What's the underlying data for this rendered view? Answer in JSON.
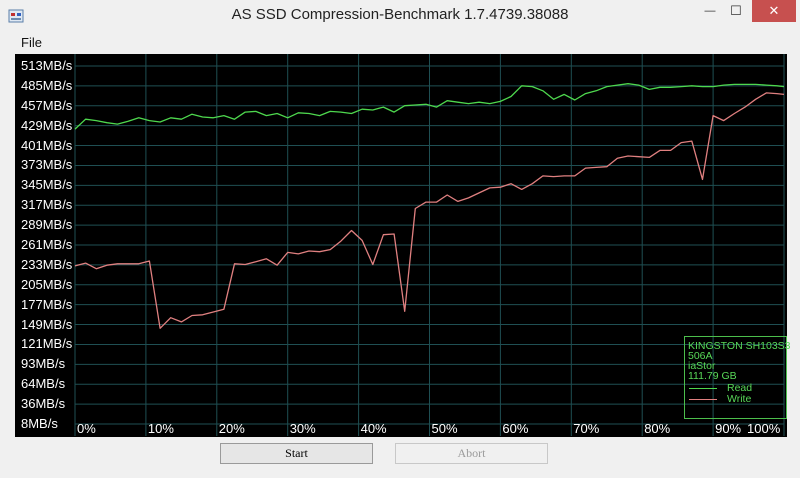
{
  "window": {
    "title": "AS SSD Compression-Benchmark 1.7.4739.38088",
    "minimize_glyph": "—",
    "maximize_glyph": "☐",
    "close_glyph": "✕"
  },
  "menu": {
    "file": "File"
  },
  "chart_data": {
    "type": "line",
    "title": "",
    "xlabel": "",
    "ylabel": "",
    "y_unit": "MB/s",
    "ylim": [
      8,
      513
    ],
    "xlim": [
      0,
      100
    ],
    "y_tick_labels": [
      "513MB/s",
      "485MB/s",
      "457MB/s",
      "429MB/s",
      "401MB/s",
      "373MB/s",
      "345MB/s",
      "317MB/s",
      "289MB/s",
      "261MB/s",
      "233MB/s",
      "205MB/s",
      "177MB/s",
      "149MB/s",
      "121MB/s",
      "93MB/s",
      "64MB/s",
      "36MB/s",
      "8MB/s"
    ],
    "x_ticks": [
      {
        "value": 0,
        "label": "0%"
      },
      {
        "value": 10,
        "label": "10%"
      },
      {
        "value": 20,
        "label": "20%"
      },
      {
        "value": 30,
        "label": "30%"
      },
      {
        "value": 40,
        "label": "40%"
      },
      {
        "value": 50,
        "label": "50%"
      },
      {
        "value": 60,
        "label": "60%"
      },
      {
        "value": 70,
        "label": "70%"
      },
      {
        "value": 80,
        "label": "80%"
      },
      {
        "value": 90,
        "label": "90%"
      },
      {
        "value": 100,
        "label": "100%"
      }
    ],
    "grid": true,
    "background": "#000000",
    "grid_color": "#1f4f53",
    "series": [
      {
        "name": "Read",
        "color": "#4ed84e",
        "points": [
          [
            0,
            424
          ],
          [
            1.5,
            438
          ],
          [
            3,
            436
          ],
          [
            4.5,
            433
          ],
          [
            6,
            431
          ],
          [
            7.5,
            435
          ],
          [
            9,
            440
          ],
          [
            10.5,
            436
          ],
          [
            12,
            434
          ],
          [
            13.5,
            440
          ],
          [
            15,
            438
          ],
          [
            16.5,
            445
          ],
          [
            18,
            441
          ],
          [
            19.5,
            440
          ],
          [
            21,
            443
          ],
          [
            22.5,
            438
          ],
          [
            24,
            448
          ],
          [
            25.5,
            449
          ],
          [
            27,
            443
          ],
          [
            28.5,
            446
          ],
          [
            30,
            440
          ],
          [
            31.5,
            447
          ],
          [
            33,
            446
          ],
          [
            34.5,
            443
          ],
          [
            36,
            449
          ],
          [
            37.5,
            448
          ],
          [
            39,
            446
          ],
          [
            40.5,
            452
          ],
          [
            42,
            451
          ],
          [
            43.5,
            455
          ],
          [
            45,
            448
          ],
          [
            46.5,
            457
          ],
          [
            48,
            458
          ],
          [
            49.5,
            459
          ],
          [
            51,
            455
          ],
          [
            52.5,
            464
          ],
          [
            54,
            462
          ],
          [
            55.5,
            460
          ],
          [
            57,
            462
          ],
          [
            58.5,
            460
          ],
          [
            60,
            463
          ],
          [
            61.5,
            470
          ],
          [
            63,
            485
          ],
          [
            64.5,
            484
          ],
          [
            66,
            478
          ],
          [
            67.5,
            466
          ],
          [
            69,
            473
          ],
          [
            70.5,
            465
          ],
          [
            72,
            474
          ],
          [
            73.5,
            478
          ],
          [
            75,
            484
          ],
          [
            76.5,
            486
          ],
          [
            78,
            488
          ],
          [
            79.5,
            486
          ],
          [
            81,
            480
          ],
          [
            82.5,
            483
          ],
          [
            84,
            483
          ],
          [
            85.5,
            484
          ],
          [
            87,
            485
          ],
          [
            88.5,
            484
          ],
          [
            90,
            484
          ],
          [
            91.5,
            486
          ],
          [
            93,
            487
          ],
          [
            94.5,
            487
          ],
          [
            96,
            487
          ],
          [
            97.5,
            486
          ],
          [
            99,
            485
          ],
          [
            100,
            484
          ]
        ]
      },
      {
        "name": "Write",
        "color": "#e08080",
        "points": [
          [
            0,
            231
          ],
          [
            1.5,
            235
          ],
          [
            3,
            227
          ],
          [
            4.5,
            232
          ],
          [
            6,
            234
          ],
          [
            7.5,
            234
          ],
          [
            9,
            234
          ],
          [
            10.5,
            238
          ],
          [
            12,
            143
          ],
          [
            13.5,
            158
          ],
          [
            15,
            152
          ],
          [
            16.5,
            161
          ],
          [
            18,
            162
          ],
          [
            19.5,
            166
          ],
          [
            21,
            170
          ],
          [
            22.5,
            234
          ],
          [
            24,
            233
          ],
          [
            25.5,
            237
          ],
          [
            27,
            241
          ],
          [
            28.5,
            232
          ],
          [
            30,
            250
          ],
          [
            31.5,
            248
          ],
          [
            33,
            252
          ],
          [
            34.5,
            251
          ],
          [
            36,
            254
          ],
          [
            37.5,
            266
          ],
          [
            39,
            281
          ],
          [
            40.5,
            267
          ],
          [
            42,
            233
          ],
          [
            43.5,
            275
          ],
          [
            45,
            276
          ],
          [
            46.5,
            167
          ],
          [
            48,
            312
          ],
          [
            49.5,
            321
          ],
          [
            51,
            321
          ],
          [
            52.5,
            331
          ],
          [
            54,
            322
          ],
          [
            55.5,
            327
          ],
          [
            57,
            334
          ],
          [
            58.5,
            341
          ],
          [
            60,
            342
          ],
          [
            61.5,
            347
          ],
          [
            63,
            339
          ],
          [
            64.5,
            347
          ],
          [
            66,
            358
          ],
          [
            67.5,
            357
          ],
          [
            69,
            358
          ],
          [
            70.5,
            358
          ],
          [
            72,
            369
          ],
          [
            73.5,
            370
          ],
          [
            75,
            371
          ],
          [
            76.5,
            383
          ],
          [
            78,
            386
          ],
          [
            79.5,
            385
          ],
          [
            81,
            384
          ],
          [
            82.5,
            394
          ],
          [
            84,
            394
          ],
          [
            85.5,
            405
          ],
          [
            87,
            407
          ],
          [
            88.5,
            353
          ],
          [
            90,
            443
          ],
          [
            91.5,
            436
          ],
          [
            93,
            446
          ],
          [
            94.5,
            455
          ],
          [
            96,
            466
          ],
          [
            97.5,
            475
          ],
          [
            99,
            474
          ],
          [
            100,
            473
          ]
        ]
      }
    ],
    "legend": {
      "position": "bottom-right",
      "lines": [
        "KINGSTON SH103S3",
        "506A",
        "iaStor",
        "111.79 GB"
      ],
      "read_label": "Read",
      "write_label": "Write"
    }
  },
  "buttons": {
    "start": "Start",
    "abort": "Abort"
  }
}
